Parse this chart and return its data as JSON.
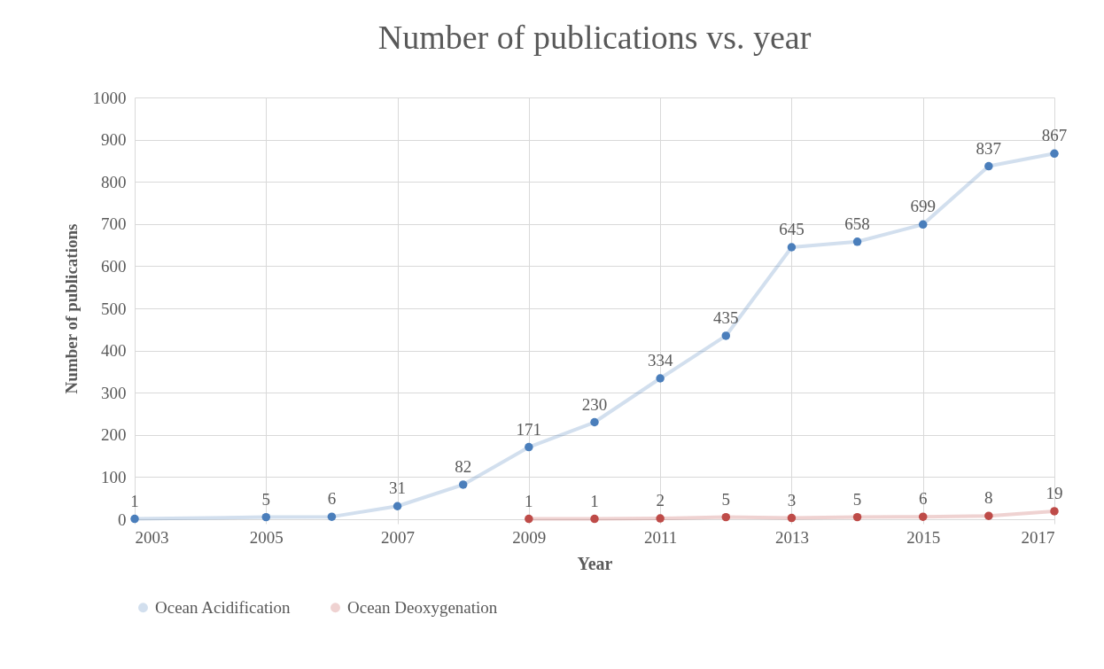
{
  "chart_data": {
    "type": "line",
    "title": "Number of publications vs. year",
    "xlabel": "Year",
    "ylabel": "Number of publications",
    "series": [
      {
        "name": "Ocean Acidification",
        "color": "#4a7ebb",
        "x": [
          2003,
          2005,
          2006,
          2007,
          2008,
          2009,
          2010,
          2011,
          2012,
          2013,
          2014,
          2015,
          2016,
          2017
        ],
        "values": [
          1,
          5,
          6,
          31,
          82,
          171,
          230,
          334,
          435,
          645,
          658,
          699,
          837,
          867
        ]
      },
      {
        "name": "Ocean Deoxygenation",
        "color": "#be4b48",
        "x": [
          2009,
          2010,
          2011,
          2012,
          2013,
          2014,
          2015,
          2016,
          2017
        ],
        "values": [
          1,
          1,
          2,
          5,
          3,
          5,
          6,
          8,
          19
        ]
      }
    ],
    "xlim": [
      2003,
      2017
    ],
    "xticks": [
      2003,
      2005,
      2007,
      2009,
      2011,
      2013,
      2015,
      2017
    ],
    "ylim": [
      0,
      1000
    ],
    "yticks": [
      0,
      100,
      200,
      300,
      400,
      500,
      600,
      700,
      800,
      900,
      1000
    ],
    "grid": true,
    "legend": "bottom",
    "marker": "circle",
    "line_style": "solid",
    "data_labels": true
  }
}
